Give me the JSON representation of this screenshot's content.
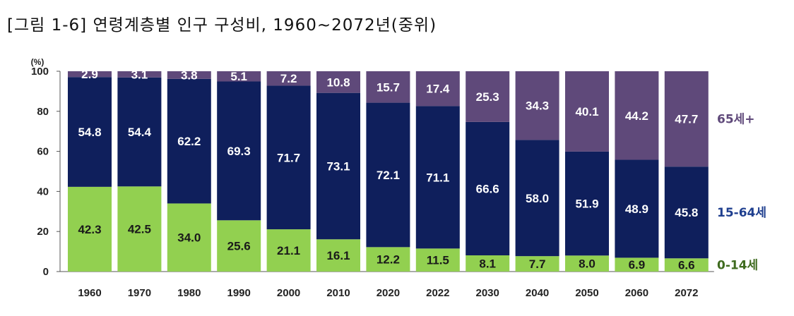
{
  "title": "[그림 1-6] 연령계층별 인구 구성비, 1960~2072년(중위)",
  "chart_data": {
    "type": "bar",
    "stacked": true,
    "title": "[그림 1-6] 연령계층별 인구 구성비, 1960~2072년(중위)",
    "unit": "(%)",
    "ylim": [
      0,
      100
    ],
    "yticks": [
      "0",
      "20",
      "40",
      "60",
      "80",
      "100"
    ],
    "categories": [
      "1960",
      "1970",
      "1980",
      "1990",
      "2000",
      "2010",
      "2020",
      "2022",
      "2030",
      "2040",
      "2050",
      "2060",
      "2072"
    ],
    "series": [
      {
        "name": "0-14세",
        "color": "#92D050",
        "labelColor": "#1a1a1a",
        "values": [
          42.3,
          42.5,
          34.0,
          25.6,
          21.1,
          16.1,
          12.2,
          11.5,
          8.1,
          7.7,
          8.0,
          6.9,
          6.6
        ],
        "labels": [
          "42.3",
          "42.5",
          "34.0",
          "25.6",
          "21.1",
          "16.1",
          "12.2",
          "11.5",
          "8.1",
          "7.7",
          "8.0",
          "6.9",
          "6.6"
        ]
      },
      {
        "name": "15-64세",
        "color": "#0F1F5C",
        "labelColor": "#ffffff",
        "values": [
          54.8,
          54.4,
          62.2,
          69.3,
          71.7,
          73.1,
          72.1,
          71.1,
          66.6,
          58.0,
          51.9,
          48.9,
          45.8
        ],
        "labels": [
          "54.8",
          "54.4",
          "62.2",
          "69.3",
          "71.7",
          "73.1",
          "72.1",
          "71.1",
          "66.6",
          "58.0",
          "51.9",
          "48.9",
          "45.8"
        ]
      },
      {
        "name": "65세+",
        "color": "#5F497A",
        "labelColor": "#ffffff",
        "values": [
          2.9,
          3.1,
          3.8,
          5.1,
          7.2,
          10.8,
          15.7,
          17.4,
          25.3,
          34.3,
          40.1,
          44.2,
          47.7
        ],
        "labels": [
          "2.9",
          "3.1",
          "3.8",
          "5.1",
          "7.2",
          "10.8",
          "15.7",
          "17.4",
          "25.3",
          "34.3",
          "40.1",
          "44.2",
          "47.7"
        ]
      }
    ],
    "legend": [
      {
        "label": "65세+",
        "color": "#5F497A"
      },
      {
        "label": "15-64세",
        "color": "#1F3F8F"
      },
      {
        "label": "0-14세",
        "color": "#3F6B1F"
      }
    ],
    "legend_position": "right",
    "grid": false
  }
}
